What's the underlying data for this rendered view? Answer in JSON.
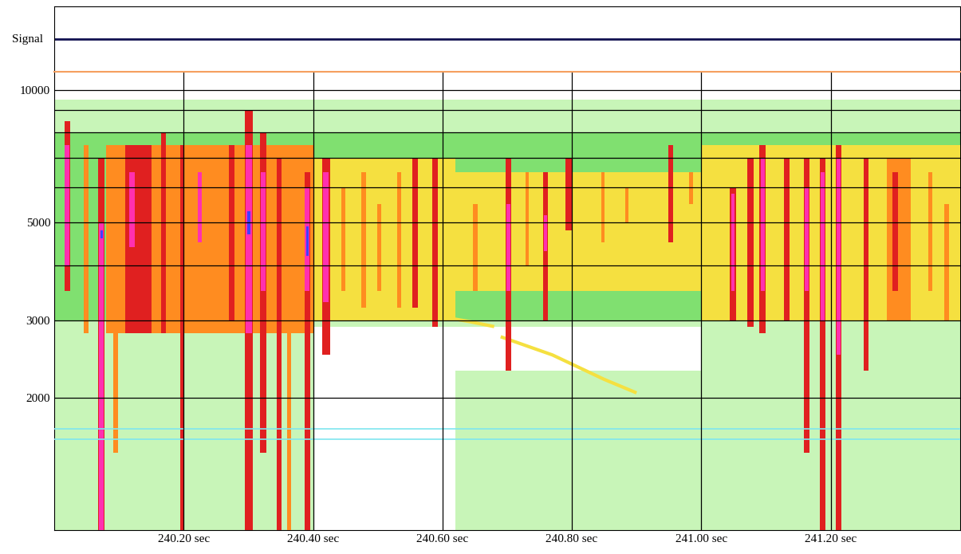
{
  "chart_data": {
    "type": "spectrogram",
    "signal": {
      "label": "Signal",
      "color": "#101050"
    },
    "xlim": [
      240.0,
      241.4
    ],
    "xticks": [
      {
        "value": 240.2,
        "label": "240.20 sec"
      },
      {
        "value": 240.4,
        "label": "240.40 sec"
      },
      {
        "value": 240.6,
        "label": "240.60 sec"
      },
      {
        "value": 240.8,
        "label": "240.80 sec"
      },
      {
        "value": 241.0,
        "label": "241.00 sec"
      },
      {
        "value": 241.2,
        "label": "241.20 sec"
      }
    ],
    "ylim": [
      1000,
      11000
    ],
    "yticks": [
      2000,
      3000,
      5000,
      10000
    ],
    "grid_values": [
      2000,
      3000,
      4000,
      5000,
      6000,
      7000,
      8000,
      9000,
      10000
    ],
    "log": "y",
    "grid": true,
    "reference_lines": {
      "values": [
        1610,
        1700
      ],
      "color": "#7fe6ef"
    },
    "level_colors": [
      "#ffffff",
      "#c8f5b8",
      "#80e070",
      "#f5e040",
      "#ff8c20",
      "#e02020",
      "#ff30b0",
      "#4040ff"
    ],
    "regions": [
      {
        "t0": 240.0,
        "t1": 241.4,
        "f_lo": 2900,
        "f_hi": 9500,
        "level": 1
      },
      {
        "t0": 240.0,
        "t1": 240.4,
        "f_lo": 1000,
        "f_hi": 2900,
        "level": 1
      },
      {
        "t0": 240.62,
        "t1": 241.0,
        "f_lo": 1000,
        "f_hi": 2300,
        "level": 1
      },
      {
        "t0": 241.0,
        "t1": 241.4,
        "f_lo": 1000,
        "f_hi": 2900,
        "level": 1
      },
      {
        "t0": 240.0,
        "t1": 241.4,
        "f_lo": 3000,
        "f_hi": 8000,
        "level": 2
      },
      {
        "t0": 240.08,
        "t1": 240.4,
        "f_lo": 2800,
        "f_hi": 7500,
        "level": 4
      },
      {
        "t0": 240.4,
        "t1": 240.62,
        "f_lo": 3000,
        "f_hi": 7000,
        "level": 3
      },
      {
        "t0": 240.62,
        "t1": 241.0,
        "f_lo": 3500,
        "f_hi": 6500,
        "level": 3
      },
      {
        "t0": 241.0,
        "t1": 241.4,
        "f_lo": 3000,
        "f_hi": 7500,
        "level": 3
      }
    ],
    "bursts": [
      {
        "t": 240.02,
        "dt": 0.009,
        "f_lo": 3500,
        "f_hi": 8500,
        "level": 5
      },
      {
        "t": 240.02,
        "dt": 0.007,
        "f_lo": 4000,
        "f_hi": 7500,
        "level": 6
      },
      {
        "t": 240.049,
        "dt": 0.008,
        "f_lo": 2800,
        "f_hi": 7500,
        "level": 4
      },
      {
        "t": 240.073,
        "dt": 0.01,
        "f_lo": 1000,
        "f_hi": 7000,
        "level": 5
      },
      {
        "t": 240.073,
        "dt": 0.008,
        "f_lo": 1000,
        "f_hi": 5000,
        "level": 6
      },
      {
        "t": 240.073,
        "dt": 0.004,
        "f_lo": 4600,
        "f_hi": 4800,
        "level": 7
      },
      {
        "t": 240.095,
        "dt": 0.008,
        "f_lo": 1500,
        "f_hi": 7500,
        "level": 4
      },
      {
        "t": 240.13,
        "dt": 0.04,
        "f_lo": 2800,
        "f_hi": 7500,
        "level": 5
      },
      {
        "t": 240.12,
        "dt": 0.008,
        "f_lo": 4400,
        "f_hi": 6500,
        "level": 6
      },
      {
        "t": 240.169,
        "dt": 0.008,
        "f_lo": 2800,
        "f_hi": 8000,
        "level": 5
      },
      {
        "t": 240.198,
        "dt": 0.007,
        "f_lo": 1000,
        "f_hi": 7500,
        "level": 5
      },
      {
        "t": 240.235,
        "dt": 0.03,
        "f_lo": 3000,
        "f_hi": 7000,
        "level": 4
      },
      {
        "t": 240.225,
        "dt": 0.007,
        "f_lo": 4500,
        "f_hi": 6500,
        "level": 6
      },
      {
        "t": 240.274,
        "dt": 0.008,
        "f_lo": 3000,
        "f_hi": 7500,
        "level": 5
      },
      {
        "t": 240.301,
        "dt": 0.012,
        "f_lo": 1000,
        "f_hi": 9000,
        "level": 5
      },
      {
        "t": 240.301,
        "dt": 0.01,
        "f_lo": 2800,
        "f_hi": 7500,
        "level": 6
      },
      {
        "t": 240.301,
        "dt": 0.005,
        "f_lo": 4700,
        "f_hi": 5300,
        "level": 7
      },
      {
        "t": 240.323,
        "dt": 0.009,
        "f_lo": 1500,
        "f_hi": 8000,
        "level": 5
      },
      {
        "t": 240.323,
        "dt": 0.007,
        "f_lo": 3500,
        "f_hi": 6500,
        "level": 6
      },
      {
        "t": 240.348,
        "dt": 0.007,
        "f_lo": 1000,
        "f_hi": 7000,
        "level": 5
      },
      {
        "t": 240.363,
        "dt": 0.006,
        "f_lo": 1000,
        "f_hi": 6000,
        "level": 4
      },
      {
        "t": 240.391,
        "dt": 0.009,
        "f_lo": 1000,
        "f_hi": 6500,
        "level": 5
      },
      {
        "t": 240.391,
        "dt": 0.007,
        "f_lo": 3500,
        "f_hi": 6000,
        "level": 6
      },
      {
        "t": 240.391,
        "dt": 0.004,
        "f_lo": 4200,
        "f_hi": 4900,
        "level": 7
      },
      {
        "t": 240.42,
        "dt": 0.012,
        "f_lo": 2500,
        "f_hi": 7000,
        "level": 5
      },
      {
        "t": 240.42,
        "dt": 0.009,
        "f_lo": 3300,
        "f_hi": 6500,
        "level": 6
      },
      {
        "t": 240.447,
        "dt": 0.007,
        "f_lo": 3500,
        "f_hi": 6000,
        "level": 4
      },
      {
        "t": 240.478,
        "dt": 0.007,
        "f_lo": 3200,
        "f_hi": 6500,
        "level": 4
      },
      {
        "t": 240.502,
        "dt": 0.006,
        "f_lo": 3500,
        "f_hi": 5500,
        "level": 4
      },
      {
        "t": 240.533,
        "dt": 0.007,
        "f_lo": 3200,
        "f_hi": 6500,
        "level": 4
      },
      {
        "t": 240.558,
        "dt": 0.008,
        "f_lo": 3200,
        "f_hi": 7000,
        "level": 5
      },
      {
        "t": 240.589,
        "dt": 0.009,
        "f_lo": 2900,
        "f_hi": 7000,
        "level": 5
      },
      {
        "t": 240.651,
        "dt": 0.007,
        "f_lo": 3500,
        "f_hi": 5500,
        "level": 4
      },
      {
        "t": 240.702,
        "dt": 0.009,
        "f_lo": 2300,
        "f_hi": 7000,
        "level": 5
      },
      {
        "t": 240.702,
        "dt": 0.006,
        "f_lo": 3500,
        "f_hi": 5500,
        "level": 6
      },
      {
        "t": 240.731,
        "dt": 0.006,
        "f_lo": 4000,
        "f_hi": 6500,
        "level": 4
      },
      {
        "t": 240.759,
        "dt": 0.008,
        "f_lo": 3000,
        "f_hi": 6500,
        "level": 5
      },
      {
        "t": 240.759,
        "dt": 0.005,
        "f_lo": 4300,
        "f_hi": 5200,
        "level": 6
      },
      {
        "t": 240.795,
        "dt": 0.009,
        "f_lo": 4800,
        "f_hi": 7000,
        "level": 5
      },
      {
        "t": 240.848,
        "dt": 0.006,
        "f_lo": 4500,
        "f_hi": 6500,
        "level": 4
      },
      {
        "t": 240.885,
        "dt": 0.006,
        "f_lo": 5000,
        "f_hi": 6000,
        "level": 4
      },
      {
        "t": 240.953,
        "dt": 0.008,
        "f_lo": 4500,
        "f_hi": 7500,
        "level": 5
      },
      {
        "t": 240.984,
        "dt": 0.006,
        "f_lo": 5500,
        "f_hi": 6500,
        "level": 4
      },
      {
        "t": 241.049,
        "dt": 0.009,
        "f_lo": 3000,
        "f_hi": 6000,
        "level": 5
      },
      {
        "t": 241.049,
        "dt": 0.006,
        "f_lo": 3500,
        "f_hi": 5800,
        "level": 6
      },
      {
        "t": 241.076,
        "dt": 0.009,
        "f_lo": 2900,
        "f_hi": 7000,
        "level": 5
      },
      {
        "t": 241.095,
        "dt": 0.01,
        "f_lo": 2800,
        "f_hi": 7500,
        "level": 5
      },
      {
        "t": 241.095,
        "dt": 0.007,
        "f_lo": 3500,
        "f_hi": 7000,
        "level": 6
      },
      {
        "t": 241.132,
        "dt": 0.009,
        "f_lo": 3000,
        "f_hi": 7000,
        "level": 5
      },
      {
        "t": 241.163,
        "dt": 0.009,
        "f_lo": 1500,
        "f_hi": 7000,
        "level": 5
      },
      {
        "t": 241.163,
        "dt": 0.006,
        "f_lo": 3500,
        "f_hi": 6000,
        "level": 6
      },
      {
        "t": 241.188,
        "dt": 0.009,
        "f_lo": 1000,
        "f_hi": 7000,
        "level": 5
      },
      {
        "t": 241.188,
        "dt": 0.006,
        "f_lo": 3000,
        "f_hi": 6500,
        "level": 6
      },
      {
        "t": 241.212,
        "dt": 0.009,
        "f_lo": 1000,
        "f_hi": 7500,
        "level": 5
      },
      {
        "t": 241.212,
        "dt": 0.006,
        "f_lo": 2500,
        "f_hi": 7000,
        "level": 6
      },
      {
        "t": 241.255,
        "dt": 0.008,
        "f_lo": 2300,
        "f_hi": 7000,
        "level": 5
      },
      {
        "t": 241.305,
        "dt": 0.037,
        "f_lo": 3000,
        "f_hi": 7000,
        "level": 4
      },
      {
        "t": 241.3,
        "dt": 0.008,
        "f_lo": 3500,
        "f_hi": 6500,
        "level": 5
      },
      {
        "t": 241.354,
        "dt": 0.007,
        "f_lo": 3500,
        "f_hi": 6500,
        "level": 4
      },
      {
        "t": 241.379,
        "dt": 0.007,
        "f_lo": 3000,
        "f_hi": 5500,
        "level": 4
      }
    ],
    "traces": [
      {
        "t": [
          240.6,
          240.64,
          240.68
        ],
        "f": [
          3050,
          2980,
          2900
        ],
        "level": 3
      },
      {
        "t": [
          240.69,
          240.77,
          240.85,
          240.9
        ],
        "f": [
          2750,
          2500,
          2200,
          2050
        ],
        "level": 3
      }
    ]
  }
}
